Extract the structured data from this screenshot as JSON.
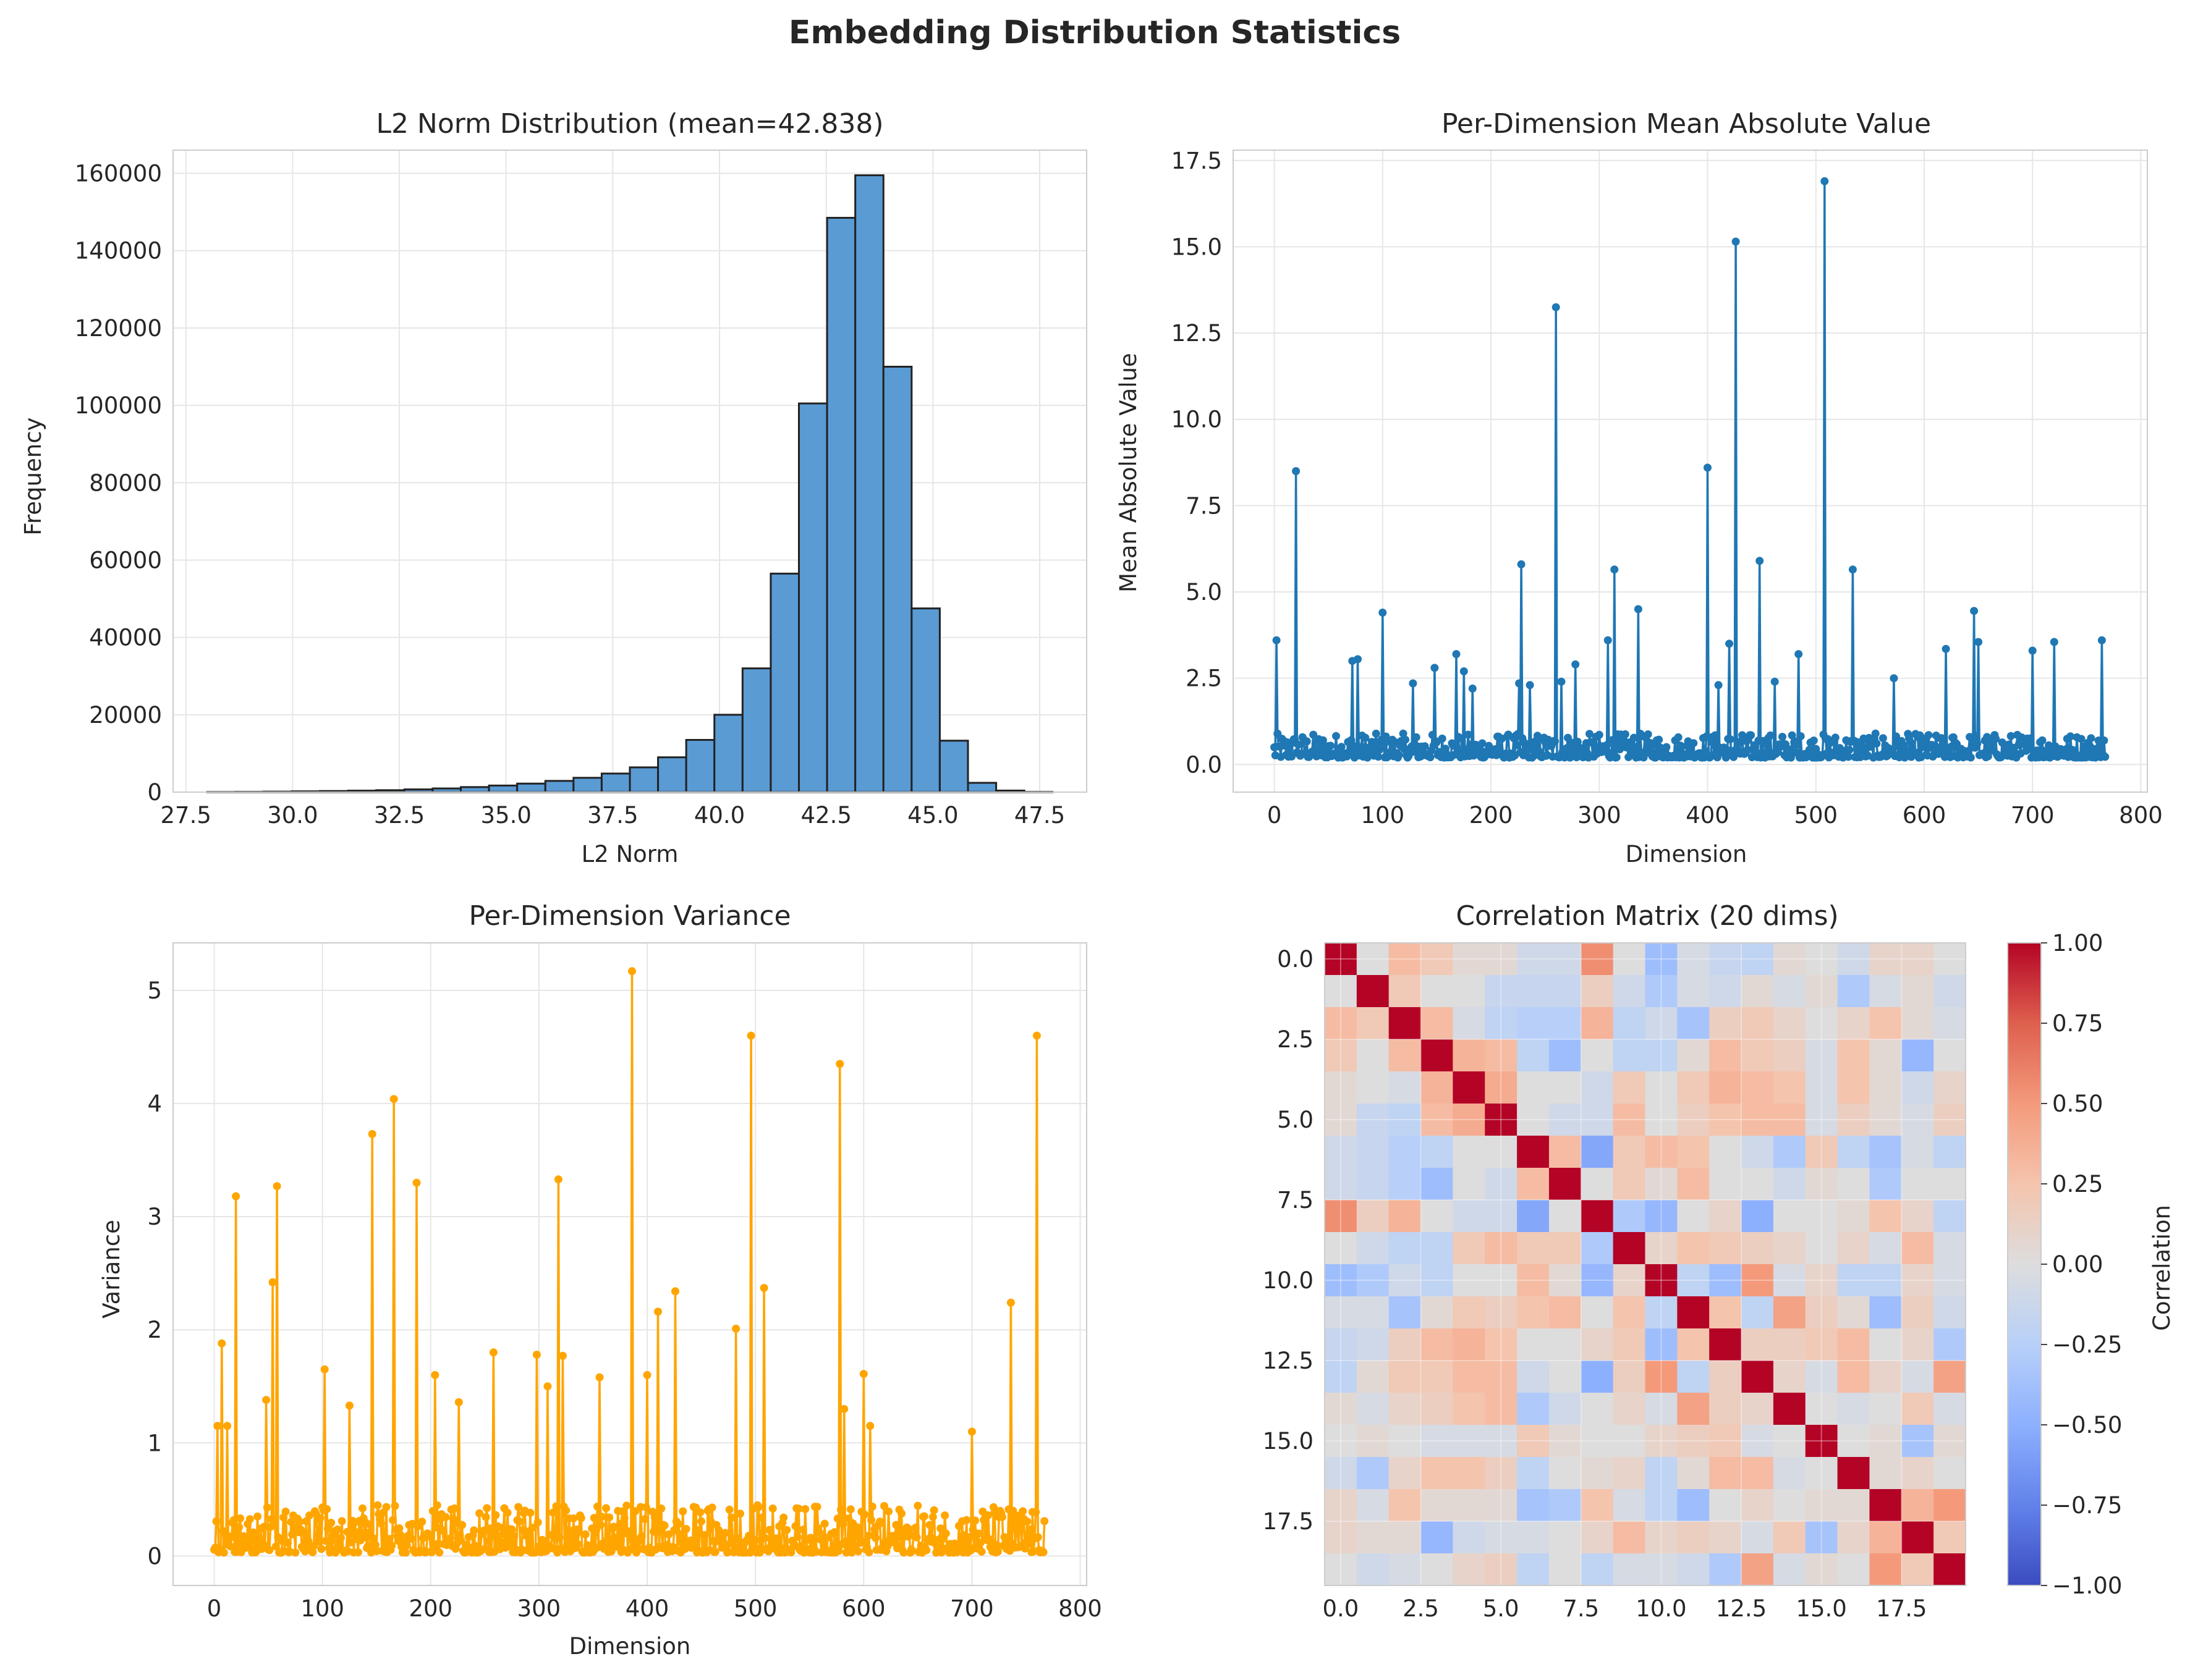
{
  "figure": {
    "title": "Embedding Distribution Statistics"
  },
  "chart_data": [
    {
      "type": "bar",
      "title": "L2 Norm Distribution (mean=42.838)",
      "xlabel": "L2 Norm",
      "ylabel": "Frequency",
      "xlim": [
        27.2,
        48.6
      ],
      "ylim": [
        0,
        166000
      ],
      "xticks": [
        27.5,
        30.0,
        32.5,
        35.0,
        37.5,
        40.0,
        42.5,
        45.0,
        47.5
      ],
      "xtick_labels": [
        "27.5",
        "30.0",
        "32.5",
        "35.0",
        "37.5",
        "40.0",
        "42.5",
        "45.0",
        "47.5"
      ],
      "yticks": [
        0,
        20000,
        40000,
        60000,
        80000,
        100000,
        120000,
        140000,
        160000
      ],
      "ytick_labels": [
        "0",
        "20000",
        "40000",
        "60000",
        "80000",
        "100000",
        "120000",
        "140000",
        "160000"
      ],
      "bin_edges": [
        28.0,
        28.66,
        29.32,
        29.98,
        30.64,
        31.3,
        31.96,
        32.62,
        33.28,
        33.94,
        34.6,
        35.26,
        35.92,
        36.58,
        37.24,
        37.9,
        38.56,
        39.22,
        39.88,
        40.54,
        41.2,
        41.86,
        42.52,
        43.18,
        43.84,
        44.5,
        45.16,
        45.82,
        46.48,
        47.14,
        47.8
      ],
      "values": [
        30,
        60,
        120,
        200,
        280,
        380,
        500,
        700,
        950,
        1300,
        1700,
        2200,
        2900,
        3700,
        4800,
        6400,
        9000,
        13500,
        20000,
        32000,
        56500,
        100500,
        148500,
        159500,
        110000,
        47500,
        13300,
        2400,
        400,
        50
      ],
      "bar_color": "#5a9bd4",
      "edge_color": "#222222",
      "grid": true
    },
    {
      "type": "line",
      "title": "Per-Dimension Mean Absolute Value",
      "xlabel": "Dimension",
      "ylabel": "Mean Absolute Value",
      "xlim": [
        -38,
        806
      ],
      "ylim": [
        -0.8,
        17.8
      ],
      "xticks": [
        0,
        100,
        200,
        300,
        400,
        500,
        600,
        700,
        800
      ],
      "xtick_labels": [
        "0",
        "100",
        "200",
        "300",
        "400",
        "500",
        "600",
        "700",
        "800"
      ],
      "yticks": [
        0,
        2.5,
        5,
        7.5,
        10,
        12.5,
        15,
        17.5
      ],
      "ytick_labels": [
        "0.0",
        "2.5",
        "5.0",
        "7.5",
        "10.0",
        "12.5",
        "15.0",
        "17.5"
      ],
      "n_dims": 768,
      "base_range": [
        0.2,
        0.9
      ],
      "peaks": [
        [
          2,
          3.6
        ],
        [
          20,
          8.5
        ],
        [
          72,
          3.0
        ],
        [
          77,
          3.05
        ],
        [
          100,
          4.4
        ],
        [
          128,
          2.35
        ],
        [
          148,
          2.8
        ],
        [
          168,
          3.2
        ],
        [
          175,
          2.7
        ],
        [
          183,
          2.2
        ],
        [
          226,
          2.35
        ],
        [
          228,
          5.8
        ],
        [
          236,
          2.3
        ],
        [
          260,
          13.25
        ],
        [
          265,
          2.4
        ],
        [
          278,
          2.9
        ],
        [
          308,
          3.6
        ],
        [
          314,
          5.65
        ],
        [
          336,
          4.5
        ],
        [
          400,
          8.6
        ],
        [
          410,
          2.3
        ],
        [
          420,
          3.5
        ],
        [
          426,
          15.15
        ],
        [
          448,
          5.9
        ],
        [
          462,
          2.4
        ],
        [
          484,
          3.2
        ],
        [
          508,
          16.9
        ],
        [
          534,
          5.65
        ],
        [
          572,
          2.5
        ],
        [
          620,
          3.35
        ],
        [
          646,
          4.45
        ],
        [
          650,
          3.55
        ],
        [
          700,
          3.3
        ],
        [
          720,
          3.55
        ],
        [
          764,
          3.6
        ]
      ],
      "color": "#1f77b4",
      "grid": true
    },
    {
      "type": "line",
      "title": "Per-Dimension Variance",
      "xlabel": "Dimension",
      "ylabel": "Variance",
      "xlim": [
        -38,
        806
      ],
      "ylim": [
        -0.26,
        5.42
      ],
      "xticks": [
        0,
        100,
        200,
        300,
        400,
        500,
        600,
        700,
        800
      ],
      "xtick_labels": [
        "0",
        "100",
        "200",
        "300",
        "400",
        "500",
        "600",
        "700",
        "800"
      ],
      "yticks": [
        0,
        1,
        2,
        3,
        4,
        5
      ],
      "ytick_labels": [
        "0",
        "1",
        "2",
        "3",
        "4",
        "5"
      ],
      "n_dims": 768,
      "base_range": [
        0.03,
        0.45
      ],
      "peaks": [
        [
          3,
          1.15
        ],
        [
          7,
          1.88
        ],
        [
          12,
          1.15
        ],
        [
          20,
          3.18
        ],
        [
          48,
          1.38
        ],
        [
          54,
          2.42
        ],
        [
          58,
          3.27
        ],
        [
          102,
          1.65
        ],
        [
          125,
          1.33
        ],
        [
          146,
          3.73
        ],
        [
          166,
          4.04
        ],
        [
          187,
          3.3
        ],
        [
          204,
          1.6
        ],
        [
          226,
          1.36
        ],
        [
          258,
          1.8
        ],
        [
          298,
          1.78
        ],
        [
          308,
          1.5
        ],
        [
          318,
          3.33
        ],
        [
          322,
          1.77
        ],
        [
          356,
          1.58
        ],
        [
          386,
          5.17
        ],
        [
          400,
          1.6
        ],
        [
          410,
          2.16
        ],
        [
          426,
          2.34
        ],
        [
          482,
          2.01
        ],
        [
          496,
          4.6
        ],
        [
          508,
          2.37
        ],
        [
          578,
          4.35
        ],
        [
          582,
          1.3
        ],
        [
          600,
          1.61
        ],
        [
          606,
          1.15
        ],
        [
          700,
          1.1
        ],
        [
          736,
          2.24
        ],
        [
          760,
          4.6
        ]
      ],
      "color": "#ffa500",
      "grid": true
    },
    {
      "type": "heatmap",
      "title": "Correlation Matrix (20 dims)",
      "colorbar_label": "Correlation",
      "xticks": [
        0,
        2.5,
        5,
        7.5,
        10,
        12.5,
        15,
        17.5
      ],
      "xtick_labels": [
        "0.0",
        "2.5",
        "5.0",
        "7.5",
        "10.0",
        "12.5",
        "15.0",
        "17.5"
      ],
      "yticks": [
        0,
        2.5,
        5,
        7.5,
        10,
        12.5,
        15,
        17.5
      ],
      "ytick_labels": [
        "0.0",
        "2.5",
        "5.0",
        "7.5",
        "10.0",
        "12.5",
        "15.0",
        "17.5"
      ],
      "vmin": -1,
      "vmax": 1,
      "colorbar_ticks": [
        -1,
        -0.75,
        -0.5,
        -0.25,
        0,
        0.25,
        0.5,
        0.75,
        1
      ],
      "colorbar_tick_labels": [
        "−1.00",
        "−0.75",
        "−0.50",
        "−0.25",
        "0.00",
        "0.25",
        "0.50",
        "0.75",
        "1.00"
      ],
      "colormap": "coolwarm",
      "size": 20,
      "matrix": [
        [
          1.0,
          0.0,
          0.3,
          0.2,
          0.05,
          0.05,
          -0.1,
          -0.1,
          0.55,
          0.0,
          -0.4,
          -0.05,
          -0.15,
          -0.2,
          0.05,
          0.0,
          -0.1,
          0.1,
          0.1,
          0.0
        ],
        [
          0.0,
          1.0,
          0.2,
          0.0,
          0.0,
          -0.15,
          -0.15,
          -0.15,
          0.15,
          -0.1,
          -0.3,
          -0.05,
          -0.1,
          0.05,
          -0.05,
          0.05,
          -0.3,
          -0.05,
          0.05,
          -0.1
        ],
        [
          0.3,
          0.2,
          1.0,
          0.3,
          -0.05,
          -0.2,
          -0.25,
          -0.25,
          0.35,
          -0.2,
          -0.1,
          -0.35,
          0.15,
          0.2,
          0.1,
          0.0,
          0.1,
          0.25,
          0.05,
          -0.05
        ],
        [
          0.2,
          0.0,
          0.3,
          1.0,
          0.35,
          0.3,
          -0.2,
          -0.4,
          0.0,
          -0.2,
          -0.2,
          0.05,
          0.3,
          0.2,
          0.15,
          -0.05,
          0.25,
          0.05,
          -0.45,
          0.0
        ],
        [
          0.05,
          0.0,
          -0.05,
          0.35,
          1.0,
          0.4,
          0.0,
          0.0,
          -0.1,
          0.2,
          0.0,
          0.2,
          0.35,
          0.3,
          0.25,
          -0.05,
          0.25,
          0.05,
          -0.1,
          0.1
        ],
        [
          0.05,
          -0.15,
          -0.2,
          0.3,
          0.4,
          1.0,
          0.0,
          -0.1,
          -0.1,
          0.3,
          0.0,
          0.15,
          0.25,
          0.3,
          0.3,
          -0.05,
          0.15,
          0.05,
          -0.05,
          0.15
        ],
        [
          -0.1,
          -0.15,
          -0.25,
          -0.2,
          0.0,
          0.0,
          1.0,
          0.3,
          -0.55,
          0.2,
          0.3,
          0.25,
          0.0,
          -0.1,
          -0.3,
          0.2,
          -0.2,
          -0.35,
          -0.05,
          -0.2
        ],
        [
          -0.1,
          -0.15,
          -0.25,
          -0.4,
          0.0,
          -0.1,
          0.3,
          1.0,
          0.0,
          0.2,
          0.05,
          0.3,
          0.0,
          0.0,
          -0.1,
          0.05,
          0.0,
          -0.3,
          0.0,
          0.0
        ],
        [
          0.55,
          0.15,
          0.35,
          0.0,
          -0.1,
          -0.1,
          -0.55,
          0.0,
          1.0,
          -0.3,
          -0.45,
          0.0,
          0.1,
          -0.5,
          0.0,
          0.0,
          0.05,
          0.25,
          0.1,
          -0.2
        ],
        [
          0.0,
          -0.1,
          -0.2,
          -0.2,
          0.2,
          0.3,
          0.2,
          0.2,
          -0.3,
          1.0,
          0.1,
          0.25,
          0.2,
          0.15,
          0.1,
          0.0,
          0.1,
          -0.05,
          0.3,
          -0.05
        ],
        [
          -0.4,
          -0.3,
          -0.1,
          -0.2,
          0.0,
          0.0,
          0.3,
          0.05,
          -0.45,
          0.1,
          1.0,
          -0.2,
          -0.4,
          0.5,
          -0.05,
          0.1,
          -0.2,
          -0.2,
          0.1,
          -0.05
        ],
        [
          -0.05,
          -0.05,
          -0.35,
          0.05,
          0.2,
          0.15,
          0.25,
          0.3,
          0.0,
          0.25,
          -0.2,
          1.0,
          0.25,
          -0.2,
          0.45,
          0.15,
          0.05,
          -0.4,
          0.15,
          -0.1
        ],
        [
          -0.15,
          -0.1,
          0.15,
          0.3,
          0.35,
          0.25,
          0.0,
          0.0,
          0.1,
          0.2,
          -0.4,
          0.25,
          1.0,
          0.15,
          0.15,
          0.2,
          0.3,
          0.0,
          0.1,
          -0.3
        ],
        [
          -0.2,
          0.05,
          0.2,
          0.2,
          0.3,
          0.3,
          -0.1,
          0.0,
          -0.5,
          0.15,
          0.5,
          -0.2,
          0.15,
          1.0,
          0.1,
          -0.05,
          0.3,
          0.1,
          -0.05,
          0.45
        ],
        [
          0.05,
          -0.05,
          0.1,
          0.15,
          0.25,
          0.3,
          -0.3,
          -0.1,
          0.0,
          0.1,
          -0.05,
          0.45,
          0.15,
          0.1,
          1.0,
          0.0,
          -0.05,
          0.0,
          0.2,
          -0.05
        ],
        [
          0.0,
          0.05,
          0.0,
          -0.05,
          -0.05,
          -0.05,
          0.2,
          0.05,
          0.0,
          0.0,
          0.1,
          0.15,
          0.2,
          -0.05,
          0.0,
          1.0,
          0.0,
          0.05,
          -0.35,
          0.05
        ],
        [
          -0.1,
          -0.3,
          0.1,
          0.25,
          0.25,
          0.15,
          -0.2,
          0.0,
          0.05,
          0.1,
          -0.2,
          0.05,
          0.3,
          0.3,
          -0.05,
          0.0,
          1.0,
          0.05,
          0.1,
          0.0
        ],
        [
          0.1,
          -0.05,
          0.25,
          0.05,
          0.05,
          0.05,
          -0.35,
          -0.3,
          0.25,
          -0.05,
          -0.2,
          -0.4,
          0.0,
          0.1,
          0.0,
          0.05,
          0.05,
          1.0,
          0.35,
          0.5
        ],
        [
          0.1,
          0.05,
          0.05,
          -0.45,
          -0.1,
          -0.05,
          -0.05,
          0.0,
          0.1,
          0.3,
          0.1,
          0.15,
          0.1,
          -0.05,
          0.2,
          -0.35,
          0.1,
          0.35,
          1.0,
          0.2
        ],
        [
          0.0,
          -0.1,
          -0.05,
          0.0,
          0.1,
          0.15,
          -0.2,
          0.0,
          -0.2,
          -0.05,
          -0.05,
          -0.1,
          -0.3,
          0.45,
          -0.05,
          0.05,
          0.0,
          0.5,
          0.2,
          1.0
        ]
      ]
    }
  ]
}
